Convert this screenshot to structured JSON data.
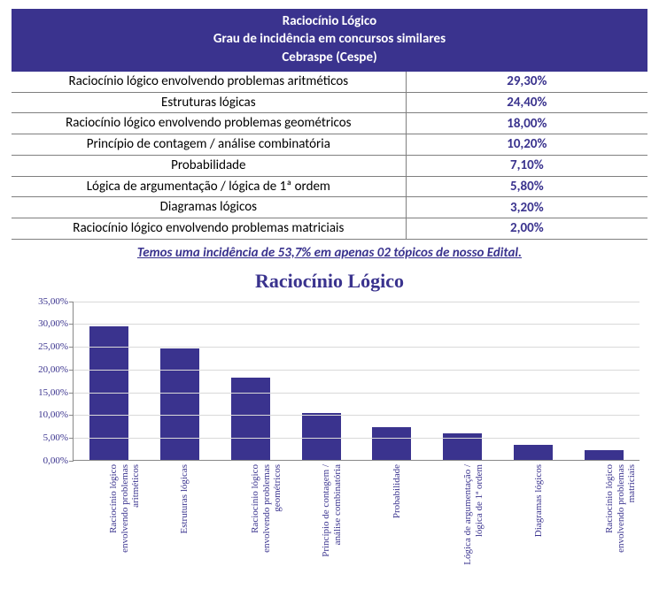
{
  "header": {
    "line1": "Raciocínio Lógico",
    "line2": "Grau de incidência em concursos similares",
    "line3": "Cebraspe (Cespe)"
  },
  "table": {
    "rows": [
      {
        "topic": "Raciocínio lógico envolvendo problemas aritméticos",
        "value": "29,30%"
      },
      {
        "topic": "Estruturas lógicas",
        "value": "24,40%"
      },
      {
        "topic": "Raciocínio lógico envolvendo problemas geométricos",
        "value": "18,00%"
      },
      {
        "topic": "Princípio de contagem / análise combinatória",
        "value": "10,20%"
      },
      {
        "topic": "Probabilidade",
        "value": "7,10%"
      },
      {
        "topic": "Lógica de argumentação / lógica de 1ª ordem",
        "value": "5,80%"
      },
      {
        "topic": "Diagramas lógicos",
        "value": "3,20%"
      },
      {
        "topic": "Raciocínio lógico envolvendo problemas matriciais",
        "value": "2,00%"
      }
    ]
  },
  "note": "Temos uma incidência de 53,7% em apenas 02 tópicos de nosso Edital.",
  "chart": {
    "type": "bar",
    "title": "Raciocínio Lógico",
    "title_fontsize": 22,
    "title_color": "#3a338e",
    "label_fontsize": 11,
    "label_color": "#3a338e",
    "background_color": "#ffffff",
    "grid_color": "#d9d9d9",
    "axis_color": "#888888",
    "bar_color": "#3a338e",
    "bar_width": 0.55,
    "ylim": [
      0,
      35
    ],
    "ytick_step": 5,
    "yticks": [
      "0,00%",
      "5,00%",
      "10,00%",
      "15,00%",
      "20,00%",
      "25,00%",
      "30,00%",
      "35,00%"
    ],
    "categories": [
      "Raciocínio lógico envolvendo problemas aritméticos",
      "Estruturas lógicas",
      "Raciocínio lógico envolvendo problemas geométricos",
      "Princípio de contagem / análise combinatória",
      "Probabilidade",
      "Lógica de argumentação / lógica de 1ª ordem",
      "Diagramas lógicos",
      "Raciocínio lógico envolvendo problemas matriciais"
    ],
    "values": [
      29.3,
      24.4,
      18.0,
      10.2,
      7.1,
      5.8,
      3.2,
      2.0
    ]
  }
}
